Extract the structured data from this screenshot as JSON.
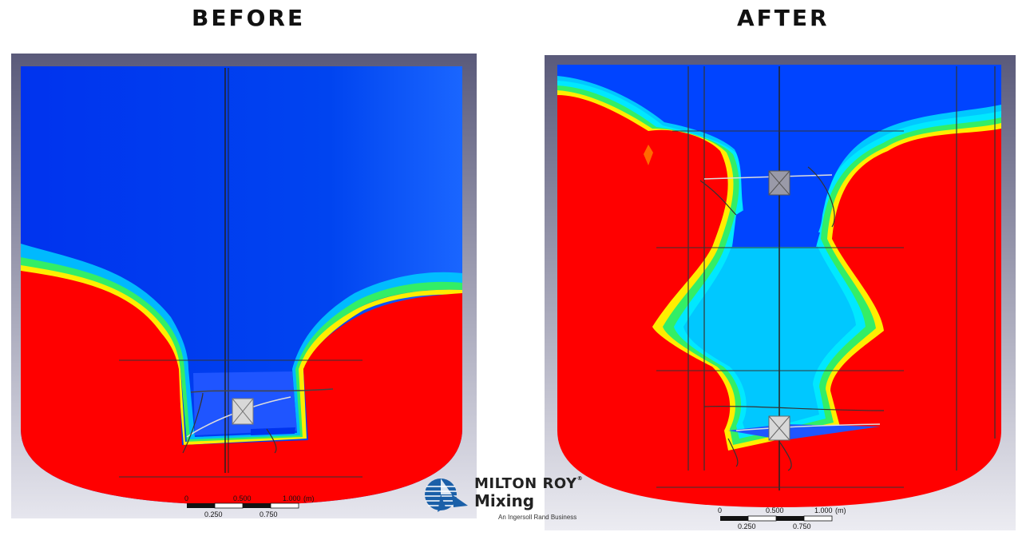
{
  "headings": {
    "before": "BEFORE",
    "after": "AFTER"
  },
  "scale_bar": {
    "top_labels": [
      "0",
      "0.500",
      "1.000",
      "(m)"
    ],
    "bottom_labels": [
      "0.250",
      "0.750"
    ]
  },
  "logo": {
    "brand_line1": "MILTON ROY",
    "registered": "®",
    "brand_line2": "Mixing",
    "tagline": "An Ingersoll Rand Business"
  },
  "colors": {
    "fluid_blue": "#0033ee",
    "fluid_red": "#ff0000",
    "cyan": "#00c8ff",
    "green": "#33ee66",
    "yellow": "#ffee00",
    "frame": "#5a5a7a"
  }
}
